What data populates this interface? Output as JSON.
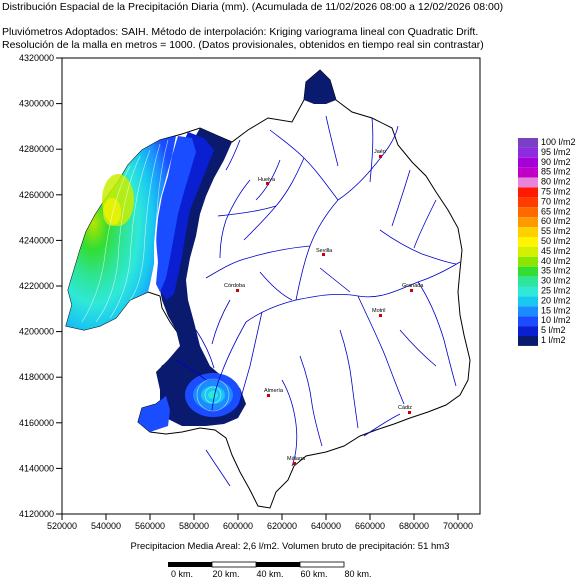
{
  "header": {
    "title": "Distribución Espacial de la Precipitación Diaria (mm). (Acumulada de 11/02/2026 08:00 a 12/02/2026 08:00)",
    "line1": "Pluviómetros Adoptados: SAIH.  Método de interpolación: Kriging variograma lineal con Quadratic Drift.",
    "line2": "Resolución de la malla en metros = 1000. (Datos provisionales, obtenidos en tiempo real sin contrastar)"
  },
  "axes": {
    "y_ticks": [
      "4320000",
      "4300000",
      "4280000",
      "4260000",
      "4240000",
      "4220000",
      "4200000",
      "4180000",
      "4160000",
      "4140000",
      "4120000"
    ],
    "x_ticks": [
      "520000",
      "540000",
      "560000",
      "580000",
      "600000",
      "620000",
      "640000",
      "660000",
      "680000",
      "700000"
    ]
  },
  "towns": [
    {
      "name": "Jaén",
      "color": "#cc0000"
    },
    {
      "name": "Huelva",
      "color": "#cc0000"
    },
    {
      "name": "Córdoba",
      "color": "#cc0000"
    },
    {
      "name": "Sevilla",
      "color": "#cc0000"
    },
    {
      "name": "Granada",
      "color": "#cc0000"
    },
    {
      "name": "Motril",
      "color": "#cc0000"
    },
    {
      "name": "Almería",
      "color": "#cc0000"
    },
    {
      "name": "Cádiz",
      "color": "#cc0000"
    },
    {
      "name": "Málaga",
      "color": "#cc0000"
    }
  ],
  "legend": [
    {
      "label": "100 l/m2",
      "color": "#7a3fc4"
    },
    {
      "label": "95 l/m2",
      "color": "#8e2be0"
    },
    {
      "label": "90 l/m2",
      "color": "#a600d6"
    },
    {
      "label": "85 l/m2",
      "color": "#c000c8"
    },
    {
      "label": "80 l/m2",
      "color": "#e884dc"
    },
    {
      "label": "75 l/m2",
      "color": "#ff1a00"
    },
    {
      "label": "70 l/m2",
      "color": "#ff3d00"
    },
    {
      "label": "65 l/m2",
      "color": "#ff6a00"
    },
    {
      "label": "60 l/m2",
      "color": "#ff9900"
    },
    {
      "label": "55 l/m2",
      "color": "#ffd000"
    },
    {
      "label": "50 l/m2",
      "color": "#fff500"
    },
    {
      "label": "45 l/m2",
      "color": "#d4f000"
    },
    {
      "label": "40 l/m2",
      "color": "#8ae600"
    },
    {
      "label": "35 l/m2",
      "color": "#33dd33"
    },
    {
      "label": "30 l/m2",
      "color": "#2ee59a"
    },
    {
      "label": "25 l/m2",
      "color": "#2fe8d8"
    },
    {
      "label": "20 l/m2",
      "color": "#19c8f0"
    },
    {
      "label": "15 l/m2",
      "color": "#1a8cff"
    },
    {
      "label": "10 l/m2",
      "color": "#1a4dff"
    },
    {
      "label": "5 l/m2",
      "color": "#0a1ed2"
    },
    {
      "label": "1 l/m2",
      "color": "#0a1a6e"
    }
  ],
  "footer": {
    "summary": "Precipitacion Media Areal: 2,6 l/m2. Volumen bruto de precipitación: 51 hm3"
  },
  "scale_bar": {
    "labels": [
      "0 km.",
      "20 km.",
      "40 km.",
      "60 km.",
      "80 km."
    ]
  },
  "colors": {
    "river": "#0000cc",
    "basin_outline": "#000000",
    "town_marker": "#cc0000"
  }
}
